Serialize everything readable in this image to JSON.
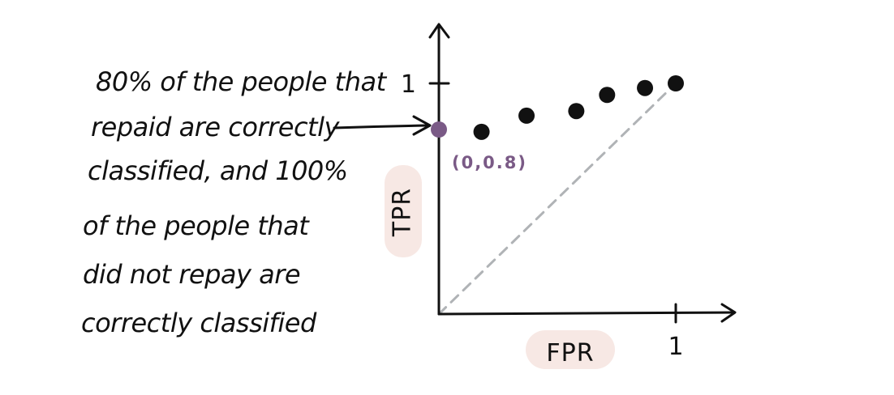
{
  "annotation": {
    "lines": [
      "80% of the people that",
      "repaid are correctly",
      "classified, and 100%",
      "of the people that",
      "did not repay are",
      "correctly classified"
    ]
  },
  "colors": {
    "ink": "#111111",
    "highlight_point": "#7a5a86",
    "diagonal": "#b0b3b6",
    "label_bg": "#f7e8e4"
  },
  "chart_data": {
    "type": "scatter",
    "title": "",
    "xlabel": "FPR",
    "ylabel": "TPR",
    "xlim": [
      0,
      1.25
    ],
    "ylim": [
      0,
      1.35
    ],
    "xticks": [
      {
        "value": 1,
        "label": "1"
      }
    ],
    "yticks": [
      {
        "value": 1,
        "label": "1"
      }
    ],
    "grid": false,
    "reference_line": {
      "from": [
        0,
        0
      ],
      "to": [
        1,
        1
      ],
      "style": "dashed"
    },
    "highlight": {
      "x": 0,
      "y": 0.8,
      "label": "(0,0.8)"
    },
    "points": [
      {
        "x": 0,
        "y": 0.8
      },
      {
        "x": 0.18,
        "y": 0.79
      },
      {
        "x": 0.37,
        "y": 0.86
      },
      {
        "x": 0.58,
        "y": 0.88
      },
      {
        "x": 0.71,
        "y": 0.95
      },
      {
        "x": 0.87,
        "y": 0.98
      },
      {
        "x": 1,
        "y": 1
      }
    ]
  }
}
